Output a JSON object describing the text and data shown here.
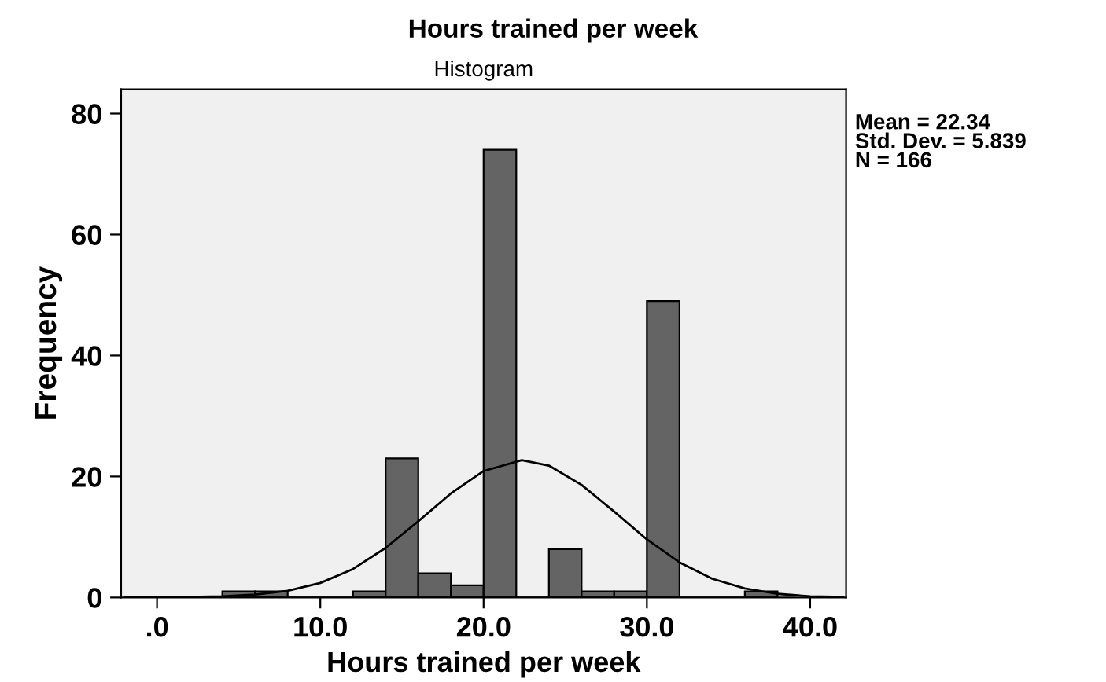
{
  "chart_data": {
    "type": "histogram",
    "title": "Hours trained per week",
    "subtitle": "Histogram",
    "xlabel": "Hours trained per week",
    "ylabel": "Frequency",
    "series": [
      {
        "color": "#646464",
        "bins": [
          4,
          6,
          8,
          10,
          12,
          14,
          16,
          18,
          20,
          22,
          24,
          26,
          28,
          30,
          32,
          34,
          36,
          38
        ],
        "values": [
          1,
          1,
          0,
          0,
          1,
          23,
          4,
          2,
          74,
          0,
          8,
          1,
          1,
          49,
          0,
          0,
          1
        ]
      },
      {
        "type": "line",
        "color": "#000000",
        "x": [
          -2,
          2,
          4,
          6,
          8,
          10,
          12,
          14,
          16,
          18,
          20,
          22.34,
          24,
          26,
          28,
          30,
          32,
          34,
          36,
          38,
          40,
          42
        ],
        "values": [
          0.0,
          0.1,
          0.2,
          0.5,
          1.1,
          2.4,
          4.7,
          8.2,
          12.6,
          17.2,
          20.9,
          22.7,
          21.8,
          18.6,
          14.2,
          9.6,
          5.8,
          3.1,
          1.5,
          0.6,
          0.2,
          0.1
        ]
      }
    ],
    "xlim": [
      -2.2,
      42.2
    ],
    "ylim": [
      0,
      84
    ],
    "xticks": [
      {
        "value": 0,
        "label": ".0"
      },
      {
        "value": 10,
        "label": "10.0"
      },
      {
        "value": 20,
        "label": "20.0"
      },
      {
        "value": 30,
        "label": "30.0"
      },
      {
        "value": 40,
        "label": "40.0"
      }
    ],
    "yticks": [
      0,
      20,
      40,
      60,
      80
    ],
    "grid": false,
    "legend": false,
    "annotations": [
      "Mean = 22.34",
      "Std. Dev. = 5.839",
      "N = 166"
    ]
  }
}
